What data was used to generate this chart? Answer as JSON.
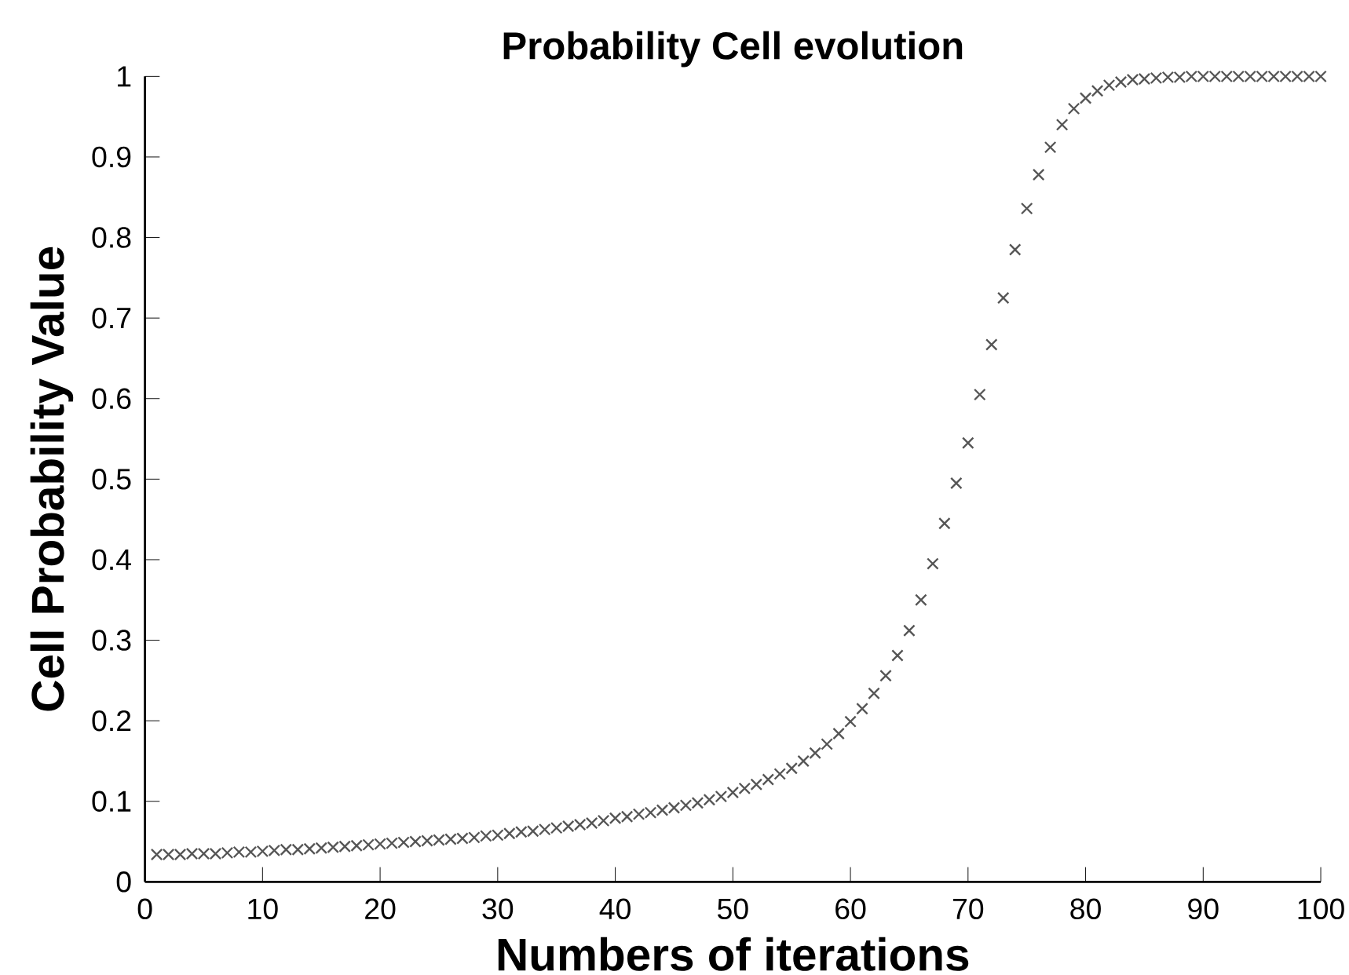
{
  "chart_data": {
    "type": "scatter",
    "title": "Probability Cell evolution",
    "xlabel": "Numbers of iterations",
    "ylabel": "Cell Probability Value",
    "x": [
      1,
      2,
      3,
      4,
      5,
      6,
      7,
      8,
      9,
      10,
      11,
      12,
      13,
      14,
      15,
      16,
      17,
      18,
      19,
      20,
      21,
      22,
      23,
      24,
      25,
      26,
      27,
      28,
      29,
      30,
      31,
      32,
      33,
      34,
      35,
      36,
      37,
      38,
      39,
      40,
      41,
      42,
      43,
      44,
      45,
      46,
      47,
      48,
      49,
      50,
      51,
      52,
      53,
      54,
      55,
      56,
      57,
      58,
      59,
      60,
      61,
      62,
      63,
      64,
      65,
      66,
      67,
      68,
      69,
      70,
      71,
      72,
      73,
      74,
      75,
      76,
      77,
      78,
      79,
      80,
      81,
      82,
      83,
      84,
      85,
      86,
      87,
      88,
      89,
      90,
      91,
      92,
      93,
      94,
      95,
      96,
      97,
      98,
      99,
      100
    ],
    "series": [
      {
        "color": "#555555",
        "values": [
          0.034,
          0.034,
          0.034,
          0.035,
          0.035,
          0.035,
          0.036,
          0.037,
          0.037,
          0.038,
          0.039,
          0.04,
          0.04,
          0.041,
          0.042,
          0.043,
          0.044,
          0.045,
          0.046,
          0.047,
          0.048,
          0.049,
          0.05,
          0.051,
          0.052,
          0.053,
          0.054,
          0.055,
          0.057,
          0.058,
          0.06,
          0.062,
          0.063,
          0.065,
          0.067,
          0.069,
          0.071,
          0.073,
          0.076,
          0.079,
          0.081,
          0.084,
          0.086,
          0.089,
          0.092,
          0.095,
          0.098,
          0.102,
          0.106,
          0.111,
          0.116,
          0.121,
          0.127,
          0.134,
          0.141,
          0.15,
          0.16,
          0.171,
          0.184,
          0.199,
          0.215,
          0.234,
          0.256,
          0.281,
          0.312,
          0.35,
          0.395,
          0.445,
          0.495,
          0.545,
          0.605,
          0.667,
          0.725,
          0.785,
          0.836,
          0.878,
          0.912,
          0.94,
          0.96,
          0.973,
          0.982,
          0.989,
          0.993,
          0.996,
          0.997,
          0.998,
          0.999,
          0.999,
          1.0,
          1.0,
          1.0,
          1.0,
          1.0,
          1.0,
          1.0,
          1.0,
          1.0,
          1.0,
          1.0,
          1.0
        ]
      }
    ],
    "xlim": [
      0,
      100
    ],
    "ylim": [
      0,
      1
    ],
    "xticks": [
      0,
      10,
      20,
      30,
      40,
      50,
      60,
      70,
      80,
      90,
      100
    ],
    "yticks": [
      0,
      0.1,
      0.2,
      0.3,
      0.4,
      0.5,
      0.6,
      0.7,
      0.8,
      0.9,
      1
    ],
    "marker": "cross",
    "grid": false
  }
}
